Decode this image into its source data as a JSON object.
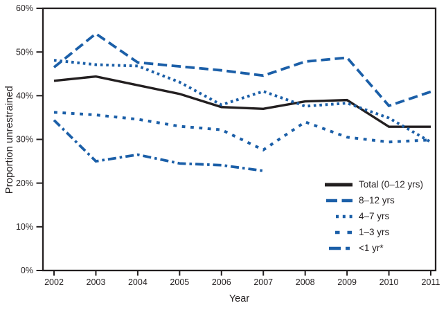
{
  "figure": {
    "background": "#ffffff",
    "frame_color": "#231f20",
    "text_color": "#231f20",
    "accent_blue": "#1b5fa8"
  },
  "chart_data": {
    "type": "line",
    "title": "",
    "xlabel": "Year",
    "ylabel": "Proportion unrestrained",
    "ylim": [
      0,
      60
    ],
    "yticks": [
      0,
      10,
      20,
      30,
      40,
      50,
      60
    ],
    "yticklabels": [
      "0%",
      "10%",
      "20%",
      "30%",
      "40%",
      "50%",
      "60%"
    ],
    "grid": false,
    "legend_position": "inside-lower-right",
    "categories": [
      "2002",
      "2003",
      "2004",
      "2005",
      "2006",
      "2007",
      "2008",
      "2009",
      "2010",
      "2011"
    ],
    "series": [
      {
        "name": "Total (0–12 yrs)",
        "color": "#231f20",
        "style": "solid",
        "width": 3.4,
        "values": [
          43.4,
          44.4,
          42.4,
          40.4,
          37.4,
          37.0,
          38.7,
          39.0,
          32.9,
          32.9
        ]
      },
      {
        "name": "8–12 yrs",
        "color": "#1b5fa8",
        "style": "long-dash",
        "width": 3.8,
        "values": [
          46.5,
          54.2,
          47.6,
          46.7,
          45.8,
          44.6,
          47.8,
          48.7,
          37.7,
          40.9
        ]
      },
      {
        "name": "4–7 yrs",
        "color": "#1b5fa8",
        "style": "dot",
        "width": 4,
        "values": [
          48.1,
          47.1,
          46.8,
          43.1,
          37.9,
          41.0,
          37.6,
          38.3,
          34.9,
          29.4
        ]
      },
      {
        "name": "1–3 yrs",
        "color": "#1b5fa8",
        "style": "dash",
        "width": 4,
        "values": [
          36.2,
          35.6,
          34.6,
          33.0,
          32.2,
          27.6,
          34.0,
          30.5,
          29.4,
          29.9
        ]
      },
      {
        "name": "<1 yr*",
        "color": "#1b5fa8",
        "style": "dash-dot",
        "width": 3.8,
        "values": [
          34.4,
          25.0,
          26.5,
          24.5,
          24.1,
          22.8,
          null,
          null,
          null,
          null
        ]
      }
    ]
  }
}
